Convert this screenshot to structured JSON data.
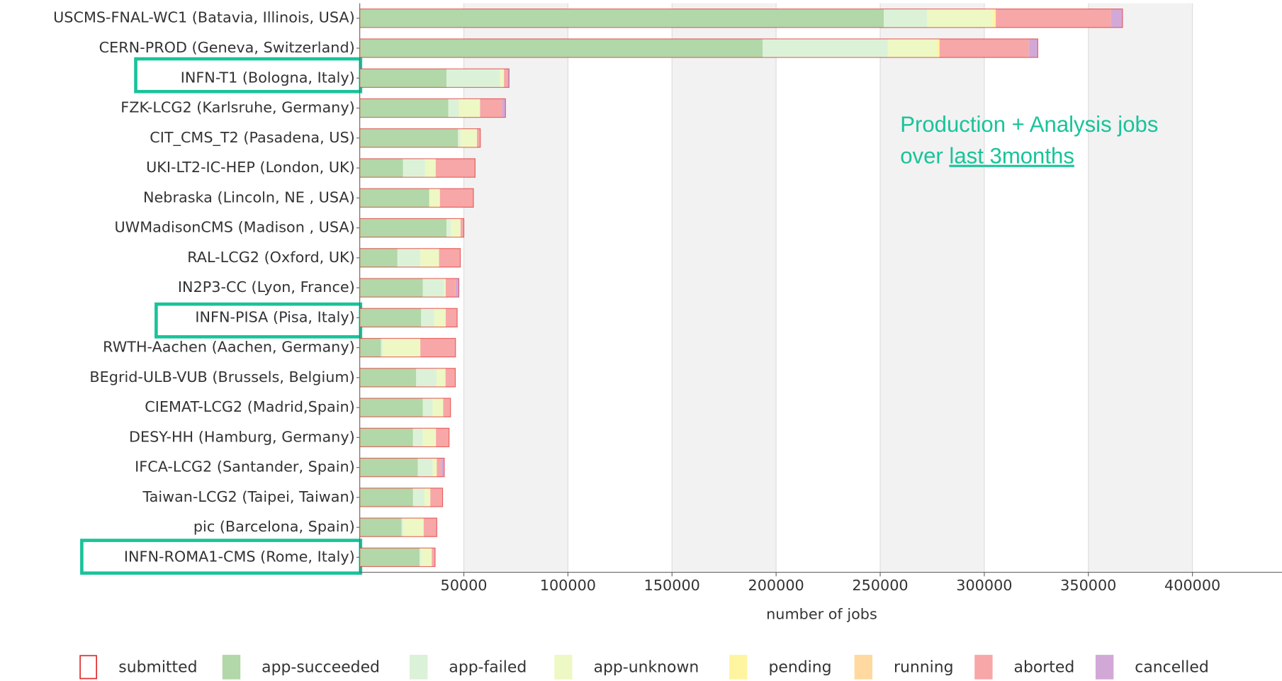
{
  "chart_data": {
    "type": "stacked-barh",
    "categories": [
      "USCMS-FNAL-WC1 (Batavia, Illinois, USA)",
      "CERN-PROD (Geneva, Switzerland)",
      "INFN-T1 (Bologna, Italy)",
      "FZK-LCG2 (Karlsruhe, Germany)",
      "CIT_CMS_T2 (Pasadena, US)",
      "UKI-LT2-IC-HEP (London, UK)",
      "Nebraska (Lincoln, NE , USA)",
      "UWMadisonCMS (Madison , USA)",
      "RAL-LCG2 (Oxford, UK)",
      "IN2P3-CC (Lyon, France)",
      "INFN-PISA (Pisa, Italy)",
      "RWTH-Aachen (Aachen, Germany)",
      "BEgrid-ULB-VUB (Brussels, Belgium)",
      "CIEMAT-LCG2 (Madrid,Spain)",
      "DESY-HH (Hamburg, Germany)",
      "IFCA-LCG2 (Santander, Spain)",
      "Taiwan-LCG2 (Taipei, Taiwan)",
      "pic (Barcelona, Spain)",
      "INFN-ROMA1-CMS (Rome, Italy)"
    ],
    "series": [
      {
        "name": "submitted",
        "color": "#e03030",
        "values": [
          0,
          0,
          0,
          0,
          0,
          0,
          0,
          0,
          0,
          0,
          0,
          0,
          0,
          0,
          0,
          0,
          0,
          0,
          0
        ]
      },
      {
        "name": "app-succeeded",
        "color": "#b2d7a8",
        "values": [
          251700,
          193500,
          41700,
          42500,
          47200,
          20800,
          33400,
          41700,
          18100,
          30300,
          29500,
          10200,
          27100,
          30300,
          25600,
          27900,
          25600,
          20100,
          28700
        ]
      },
      {
        "name": "app-failed",
        "color": "#dcf2d8",
        "values": [
          20800,
          60200,
          25600,
          5100,
          1200,
          10600,
          0,
          2000,
          11000,
          10200,
          6300,
          800,
          9800,
          4700,
          4700,
          7100,
          5500,
          800,
          800
        ]
      },
      {
        "name": "app-unknown",
        "color": "#eef8c4",
        "values": [
          31500,
          23600,
          2000,
          10200,
          7900,
          5100,
          5100,
          4700,
          9000,
          800,
          5500,
          18100,
          4300,
          5100,
          6300,
          2000,
          2800,
          9800,
          5100
        ]
      },
      {
        "name": "pending",
        "color": "#fff4a0",
        "values": [
          1500,
          1200,
          0,
          0,
          0,
          0,
          0,
          0,
          0,
          0,
          0,
          0,
          0,
          0,
          0,
          0,
          0,
          0,
          0
        ]
      },
      {
        "name": "running",
        "color": "#ffd9a0",
        "values": [
          0,
          0,
          0,
          0,
          0,
          0,
          0,
          0,
          0,
          0,
          0,
          0,
          0,
          0,
          0,
          0,
          0,
          0,
          0
        ]
      },
      {
        "name": "aborted",
        "color": "#f7a7a7",
        "values": [
          55400,
          42900,
          1600,
          10600,
          1600,
          18900,
          16100,
          1600,
          10200,
          4700,
          5500,
          16900,
          4700,
          3500,
          6300,
          2000,
          5900,
          6300,
          1600
        ]
      },
      {
        "name": "cancelled",
        "color": "#d2a8d6",
        "values": [
          5500,
          4300,
          800,
          1600,
          0,
          0,
          0,
          0,
          0,
          1600,
          0,
          0,
          0,
          0,
          0,
          1600,
          0,
          0,
          0
        ]
      }
    ],
    "xlim": [
      0,
      443000
    ],
    "xticks": [
      50000,
      100000,
      150000,
      200000,
      250000,
      300000,
      350000,
      400000
    ],
    "xlabel": "number of jobs",
    "grid": true,
    "annotation": [
      "Production + Analysis jobs",
      "over",
      "last 3months"
    ]
  }
}
